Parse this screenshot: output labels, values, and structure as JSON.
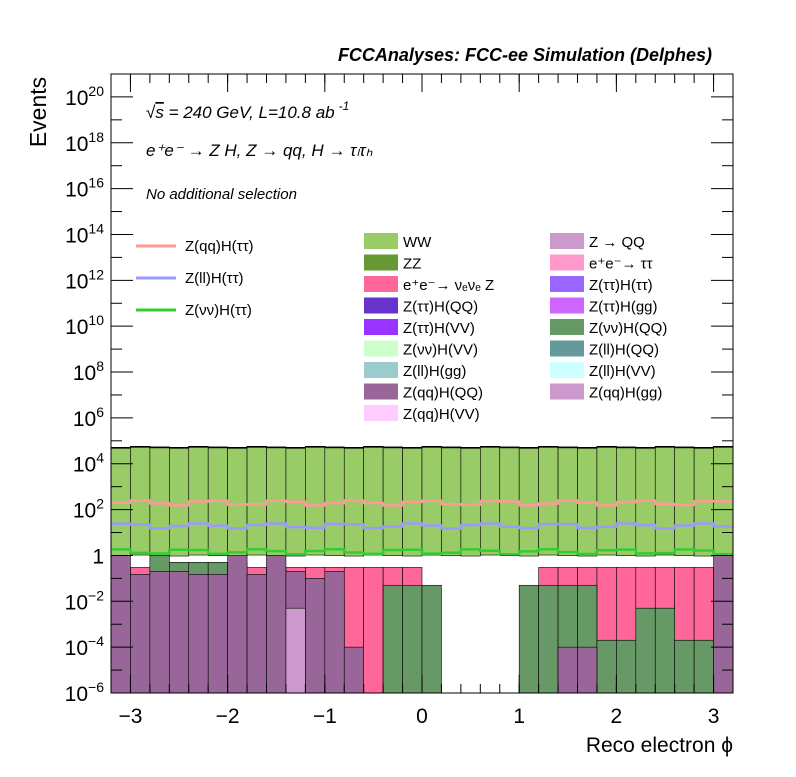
{
  "chart_data": {
    "type": "bar",
    "title": "FCCAnalyses: FCC-ee Simulation (Delphes)",
    "xlabel": "Reco electron ϕ",
    "ylabel": "Events",
    "xlim": [
      -3.2,
      3.2
    ],
    "ylim": [
      1e-06,
      1e+21
    ],
    "y_scale": "log",
    "x_ticks": [
      "−3",
      "−2",
      "−1",
      "0",
      "1",
      "2",
      "3"
    ],
    "x_tick_values": [
      -3,
      -2,
      -1,
      0,
      1,
      2,
      3
    ],
    "y_tick_exponents": [
      -6,
      -4,
      -2,
      0,
      2,
      4,
      6,
      8,
      10,
      12,
      14,
      16,
      18,
      20
    ],
    "annotations": {
      "energy_prefix": "s",
      "energy_rest": " = 240 GeV, L=10.8 ab",
      "energy_sup": "-1",
      "process": "e⁺e⁻ → Z H, Z → qq, H → τₗτₕ",
      "selection": "No additional selection"
    },
    "stack_bins": 32,
    "stack": [
      {
        "name": "WW",
        "color": "#99cc66",
        "value": 50000
      },
      {
        "name": "ZZ",
        "color": "#669933",
        "value": 3000
      },
      {
        "name": "e⁺e⁻→ νₑνₑ Z",
        "color": "#ff6699",
        "value": 400
      },
      {
        "name": "Z(ττ)H(QQ)",
        "color": "#6633cc",
        "value": 25
      },
      {
        "name": "Z(ττ)H(VV)",
        "color": "#9933ff",
        "value": 8
      },
      {
        "name": "Z(νν)H(VV)",
        "color": "#ccffcc",
        "value": 3
      },
      {
        "name": "Z(ll)H(gg)",
        "color": "#99cccc",
        "value": 2
      },
      {
        "name": "Z(qq)H(QQ)",
        "color": "#996699",
        "value": 2
      },
      {
        "name": "Z(qq)H(VV)",
        "color": "#ffccff",
        "value": 1.5
      },
      {
        "name": "Z → QQ",
        "color": "#cc99cc",
        "value": 100
      },
      {
        "name": "e⁺e⁻→ ττ",
        "color": "#ff99cc",
        "value": 100
      },
      {
        "name": "Z(ττ)H(ττ)",
        "color": "#9966ff",
        "value": 20
      },
      {
        "name": "Z(ττ)H(gg)",
        "color": "#cc66ff",
        "value": 10
      },
      {
        "name": "Z(νν)H(QQ)",
        "color": "#669966",
        "value": 6
      },
      {
        "name": "Z(ll)H(QQ)",
        "color": "#669999",
        "value": 4
      },
      {
        "name": "Z(ll)H(VV)",
        "color": "#ccffff",
        "value": 4
      },
      {
        "name": "Z(qq)H(gg)",
        "color": "#cc99cc",
        "value": 3
      }
    ],
    "lines": [
      {
        "name": "Z(qq)H(ττ)",
        "color": "#ff9999",
        "value": 200
      },
      {
        "name": "Z(ll)H(ττ)",
        "color": "#9999ff",
        "value": 20
      },
      {
        "name": "Z(νν)H(ττ)",
        "color": "#33cc33",
        "value": 1.5
      }
    ],
    "lower_bins": {
      "green_dark": [
        0.015,
        0.015,
        1,
        0.5,
        0.5,
        0.5,
        0.5,
        0.015,
        0.3,
        0.05,
        0.03,
        0.015,
        5e-07,
        5e-07,
        0.05,
        0.05,
        0.05,
        5e-07,
        5e-07,
        5e-07,
        5e-07,
        0.05,
        0.05,
        0.05,
        0.05,
        0.0002,
        0.0002,
        0.005,
        0.005,
        0.0002,
        0.0002,
        5e-07
      ],
      "purple": [
        1,
        0.15,
        0.2,
        0.2,
        0.15,
        0.15,
        1,
        0.15,
        1,
        0.2,
        0.1,
        0.2,
        0.0001,
        5e-07,
        5e-07,
        5e-07,
        5e-07,
        5e-07,
        5e-07,
        5e-07,
        5e-07,
        5e-07,
        5e-07,
        0.0001,
        0.0001,
        5e-07,
        5e-07,
        5e-07,
        5e-07,
        5e-07,
        5e-07,
        1
      ],
      "pink_light": [
        0,
        0,
        0,
        0,
        0,
        0,
        0,
        0,
        0,
        0.005,
        0,
        0,
        0,
        0,
        0,
        0,
        0,
        0,
        0,
        0,
        0,
        0,
        0,
        0,
        0,
        0,
        0,
        0,
        0,
        0,
        0,
        0
      ],
      "red_pink": [
        0.3,
        0.3,
        0.3,
        0.3,
        0.3,
        0.3,
        0.3,
        0.3,
        0.3,
        0.3,
        0.3,
        0.3,
        0.3,
        0.3,
        0.3,
        0.3,
        5e-07,
        5e-07,
        5e-07,
        5e-07,
        5e-07,
        5e-07,
        0.3,
        0.3,
        0.3,
        0.3,
        0.3,
        0.3,
        0.3,
        0.3,
        0.3,
        0.3
      ]
    }
  }
}
